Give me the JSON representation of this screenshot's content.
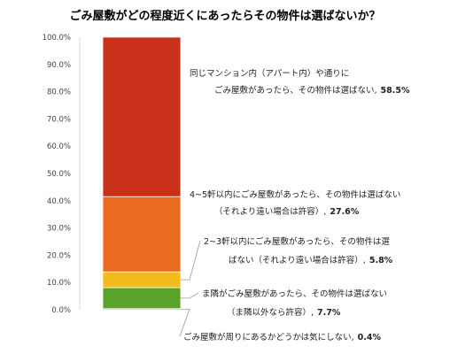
{
  "chart_data": {
    "type": "bar",
    "stacked": true,
    "title": "ごみ屋敷がどの程度近くにあったらその物件は選ばないか？",
    "ylim": [
      0,
      100
    ],
    "yticks": [
      "0.0%",
      "10.0%",
      "20.0%",
      "30.0%",
      "40.0%",
      "50.0%",
      "60.0%",
      "70.0%",
      "80.0%",
      "90.0%",
      "100.0%"
    ],
    "grid": false,
    "series": [
      {
        "name": "ごみ屋敷が周りにあるかどうかは気にしない",
        "value": 0.4,
        "color": "#4a90e2",
        "label_lines": [
          "ごみ屋敷が周りにあるかどうかは気にしない,",
          "0.4%"
        ]
      },
      {
        "name": "ま隣がごみ屋敷があったら、その物件は選ばない（ま隣以外なら許容）",
        "value": 7.7,
        "color": "#5aa32a",
        "label_lines": [
          "ま隣がごみ屋敷があったら、その物件は選ばない",
          "（ま隣以外なら許容）,",
          "7.7%"
        ]
      },
      {
        "name": "2~3軒以内にごみ屋敷があったら、その物件は選ばない（それより遠い場合は許容）",
        "value": 5.8,
        "color": "#f0bc1c",
        "label_lines": [
          "2~3軒以内にごみ屋敷があったら、その物件は選",
          "ばない（それより遠い場合は許容）,",
          "5.8%"
        ]
      },
      {
        "name": "4~5軒以内にごみ屋敷があったら、その物件は選ばない（それより遠い場合は許容）",
        "value": 27.6,
        "color": "#ea6a20",
        "label_lines": [
          "4~5軒以内にごみ屋敷があったら、その物件は選ばない",
          "（それより遠い場合は許容）,",
          "27.6%"
        ]
      },
      {
        "name": "同じマンション内（アパート内）や通りにごみ屋敷があったら、その物件は選ばない",
        "value": 58.5,
        "color": "#c9301a",
        "label_lines": [
          "同じマンション内（アパート内）や通りに",
          "ごみ屋敷があったら、その物件は選ばない,",
          "58.5%"
        ]
      }
    ]
  }
}
